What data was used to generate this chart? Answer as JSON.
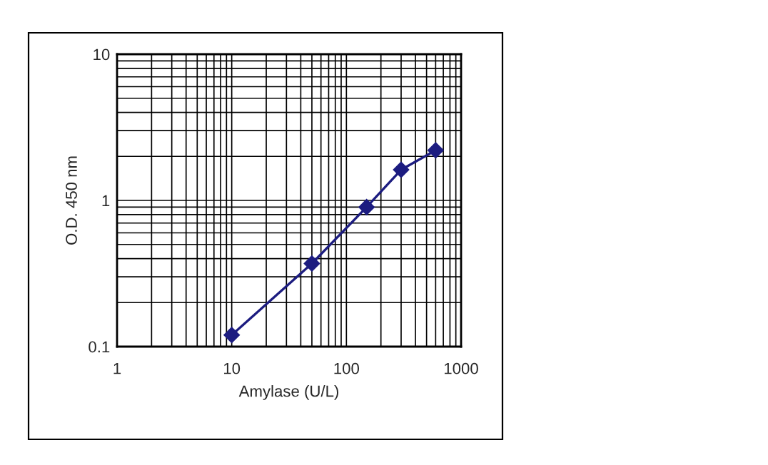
{
  "chart_data": {
    "type": "line",
    "xlabel": "Amylase (U/L)",
    "ylabel": "O.D. 450 nm",
    "x": [
      10,
      50,
      150,
      300,
      600
    ],
    "series": [
      {
        "color": "#1c1c80",
        "values": [
          0.12,
          0.37,
          0.9,
          1.62,
          2.2
        ]
      }
    ],
    "log": "xy",
    "xlim": [
      1,
      1000
    ],
    "ylim": [
      0.1,
      10
    ],
    "xticks": [
      1,
      10,
      100,
      1000
    ],
    "yticks": [
      0.1,
      1,
      10
    ],
    "grid": true,
    "marker": "diamond",
    "line_style": "solid",
    "legend": false
  }
}
